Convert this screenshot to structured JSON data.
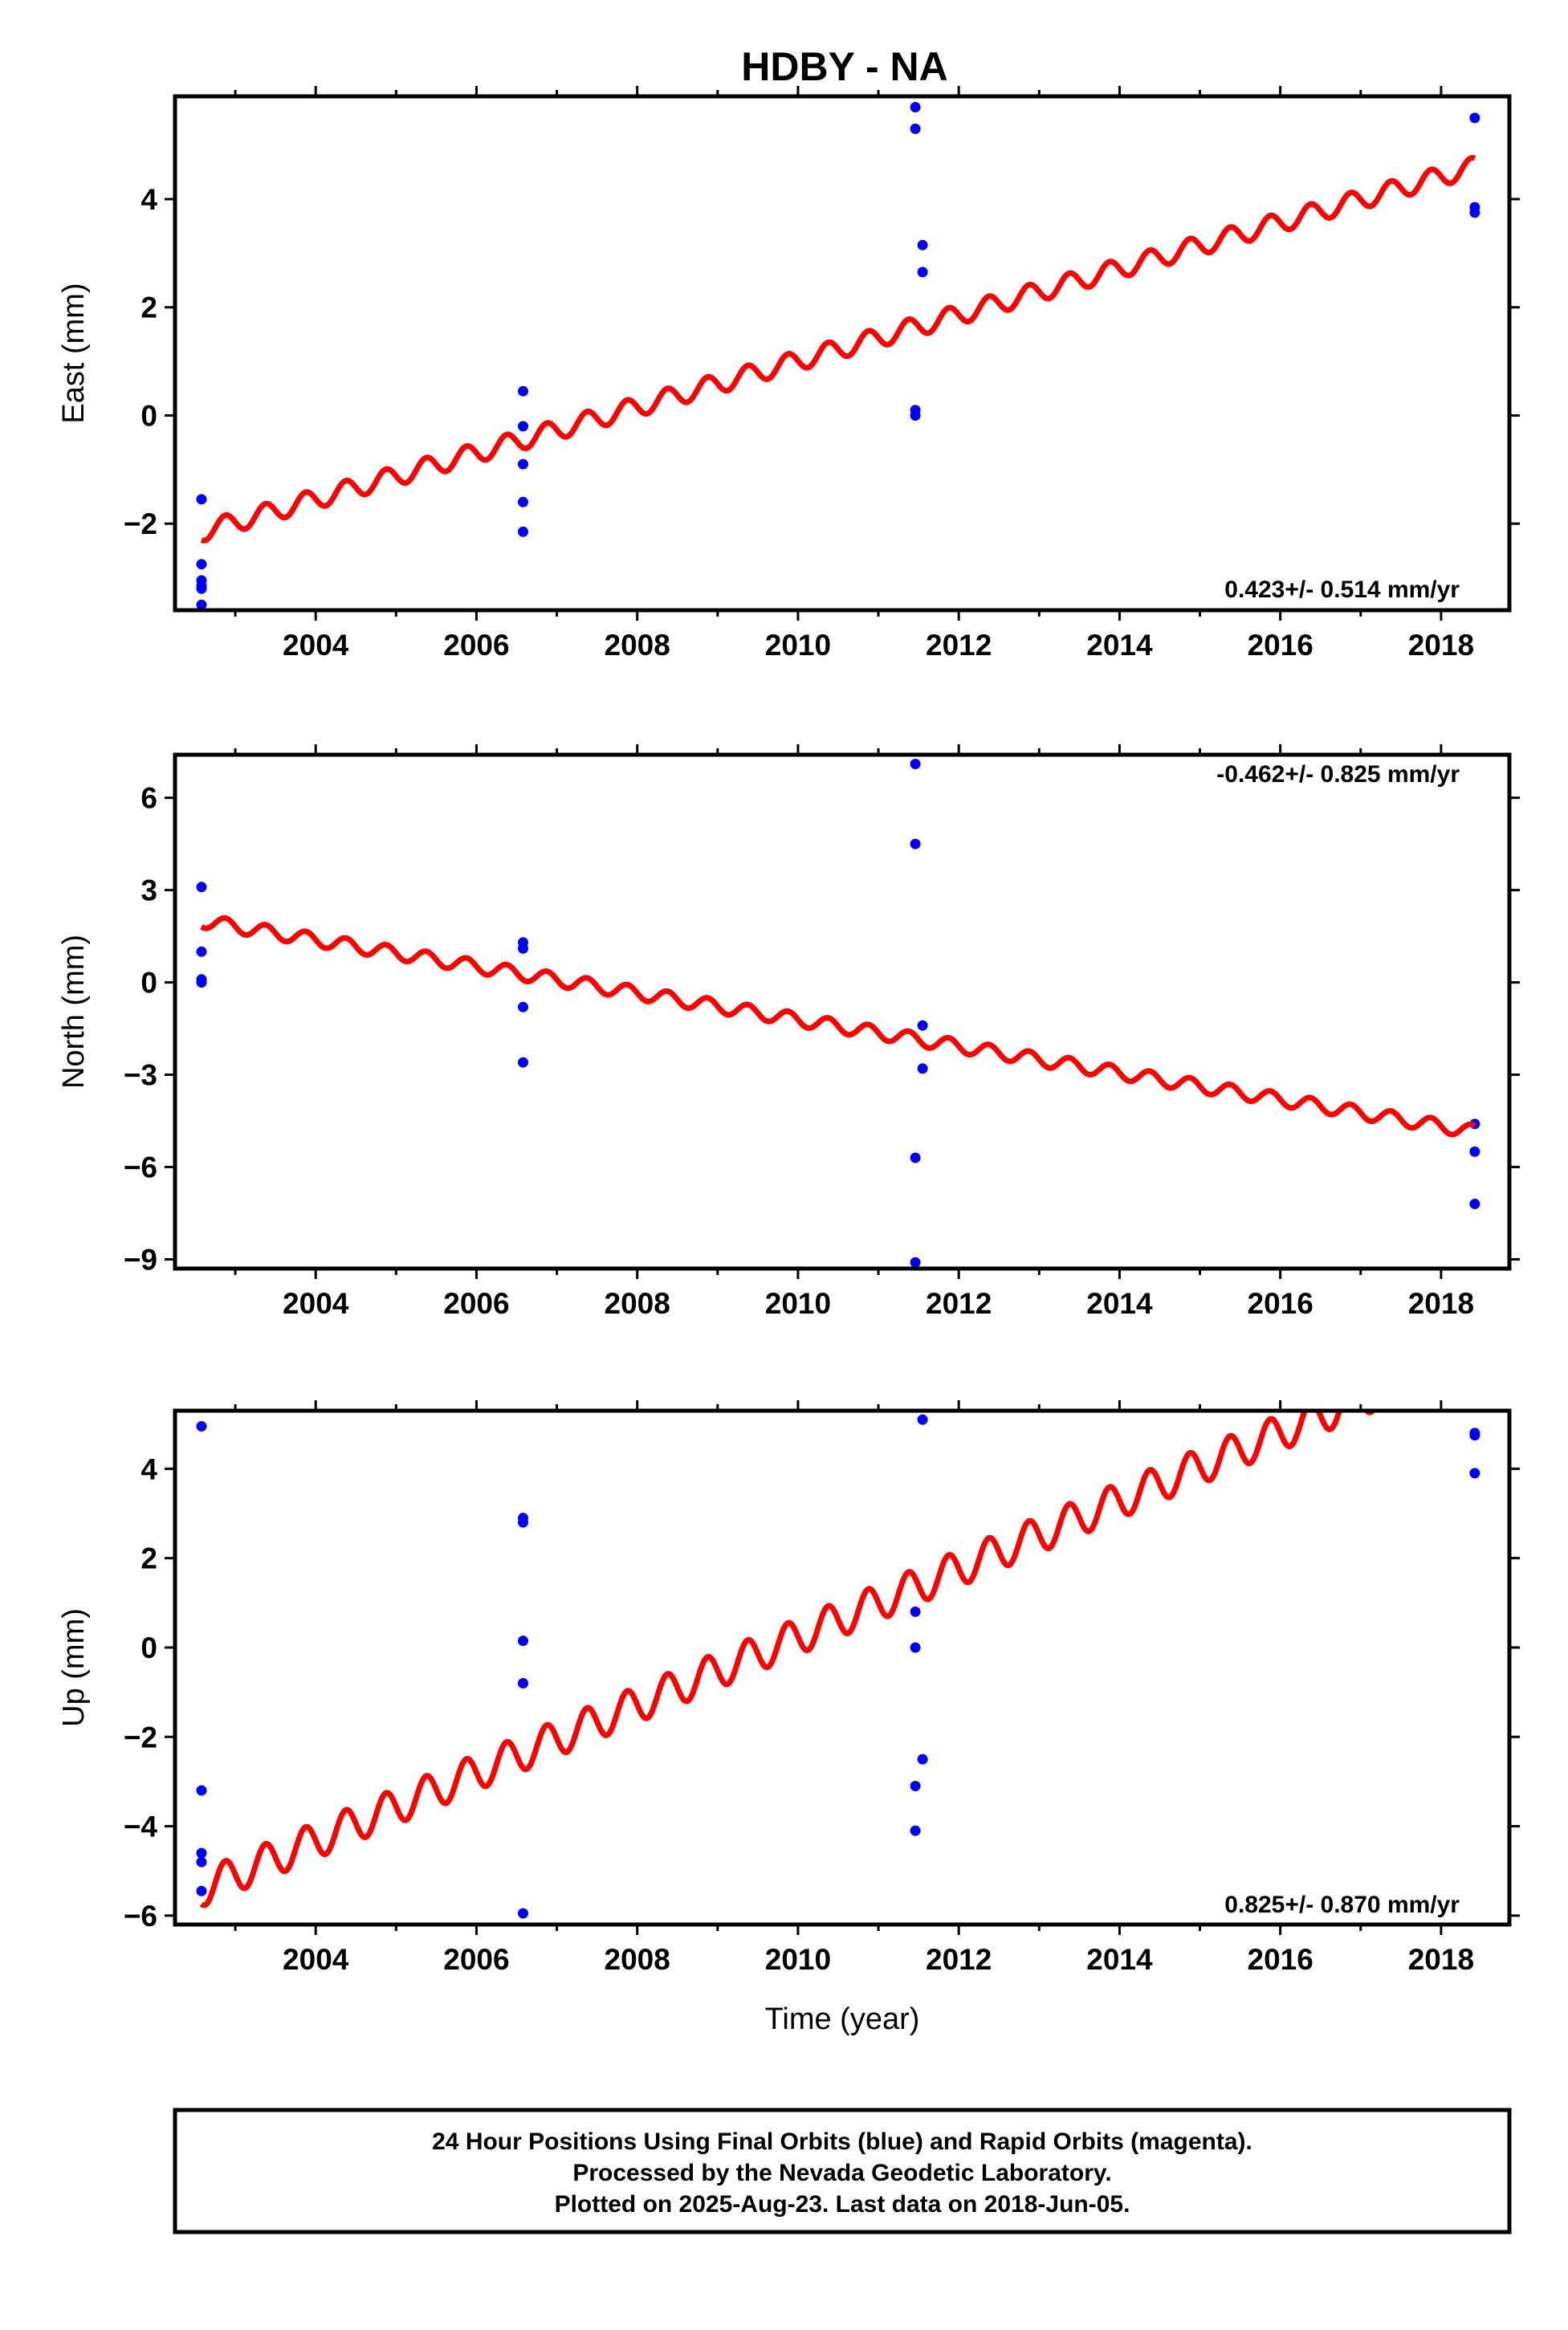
{
  "title": "HDBY - NA",
  "colors": {
    "daily_positions": "#0000ff",
    "model_fit": "#ff0000",
    "frame": "#000000"
  },
  "chart_data": [
    {
      "type": "scatter",
      "panel": "east",
      "ylabel": "East (mm)",
      "xlabel": "",
      "xlim": [
        2002.25,
        2018.85
      ],
      "ylim": [
        -3.6,
        5.9
      ],
      "xticks": [
        2004,
        2006,
        2008,
        2010,
        2012,
        2014,
        2016,
        2018
      ],
      "yticks": [
        -2,
        0,
        2,
        4
      ],
      "ytick_labels": [
        "−2",
        "0",
        "2",
        "4"
      ],
      "rate_label": "0.423+/- 0.514 mm/yr",
      "rate_position": "bottom-right",
      "series": [
        {
          "kind": "points",
          "x": [
            2002.58,
            2002.58,
            2002.58,
            2002.58,
            2002.58,
            2002.58,
            2006.58,
            2006.58,
            2006.58,
            2006.58,
            2006.58,
            2011.46,
            2011.46,
            2011.46,
            2011.46,
            2011.55,
            2011.55,
            2018.42,
            2018.42,
            2018.42
          ],
          "y": [
            -1.55,
            -2.75,
            -3.05,
            -3.2,
            -3.15,
            -3.5,
            0.45,
            -0.2,
            -0.9,
            -1.6,
            -2.15,
            5.7,
            5.3,
            0.1,
            0.0,
            3.15,
            2.65,
            5.5,
            3.85,
            3.75
          ]
        },
        {
          "kind": "model",
          "x_start": 2002.58,
          "x_end": 2018.42,
          "y_start": -2.15,
          "y_end": 4.6,
          "amplitude": 0.18,
          "period": 0.5,
          "phase": 0.75
        }
      ]
    },
    {
      "type": "scatter",
      "panel": "north",
      "ylabel": "North (mm)",
      "xlabel": "",
      "xlim": [
        2002.25,
        2018.85
      ],
      "ylim": [
        -9.3,
        7.4
      ],
      "xticks": [
        2004,
        2006,
        2008,
        2010,
        2012,
        2014,
        2016,
        2018
      ],
      "yticks": [
        -9,
        -6,
        -3,
        0,
        3,
        6
      ],
      "ytick_labels": [
        "−9",
        "−6",
        "−3",
        "0",
        "3",
        "6"
      ],
      "rate_label": "-0.462+/- 0.825 mm/yr",
      "rate_position": "top-right",
      "series": [
        {
          "kind": "points",
          "x": [
            2002.58,
            2002.58,
            2002.58,
            2002.58,
            2006.58,
            2006.58,
            2006.58,
            2006.58,
            2011.46,
            2011.46,
            2011.46,
            2011.46,
            2011.55,
            2011.55,
            2018.42,
            2018.42,
            2018.42
          ],
          "y": [
            3.1,
            1.0,
            0.1,
            0.0,
            1.3,
            1.1,
            -0.8,
            -2.6,
            7.1,
            4.5,
            -5.7,
            -9.1,
            -1.4,
            -2.8,
            -4.6,
            -5.5,
            -7.2
          ]
        },
        {
          "kind": "model",
          "x_start": 2002.58,
          "x_end": 2018.42,
          "y_start": 2.0,
          "y_end": -4.85,
          "amplitude": 0.22,
          "period": 0.5,
          "phase": 0.75
        }
      ]
    },
    {
      "type": "scatter",
      "panel": "up",
      "ylabel": "Up (mm)",
      "xlabel": "Time (year)",
      "xlim": [
        2002.25,
        2018.85
      ],
      "ylim": [
        -6.2,
        5.3
      ],
      "xticks": [
        2004,
        2006,
        2008,
        2010,
        2012,
        2014,
        2016,
        2018
      ],
      "yticks": [
        -6,
        -4,
        -2,
        0,
        2,
        4
      ],
      "ytick_labels": [
        "−6",
        "−4",
        "−2",
        "0",
        "2",
        "4"
      ],
      "rate_label": "0.825+/- 0.870 mm/yr",
      "rate_position": "bottom-right",
      "series": [
        {
          "kind": "points",
          "x": [
            2002.58,
            2002.58,
            2002.58,
            2002.58,
            2002.58,
            2006.58,
            2006.58,
            2006.58,
            2006.58,
            2006.58,
            2011.46,
            2011.46,
            2011.46,
            2011.46,
            2011.55,
            2011.55,
            2018.42,
            2018.42,
            2018.42
          ],
          "y": [
            4.95,
            -3.2,
            -4.6,
            -4.8,
            -5.45,
            2.9,
            2.8,
            0.15,
            -0.8,
            -5.95,
            0.8,
            0.0,
            -3.1,
            -4.1,
            5.1,
            -2.5,
            4.8,
            4.75,
            3.9
          ]
        },
        {
          "kind": "model",
          "x_start": 2002.58,
          "x_end": 2018.42,
          "y_start": -5.4,
          "y_end": 6.65,
          "amplitude": 0.4,
          "period": 0.5,
          "phase": 0.75
        }
      ]
    }
  ],
  "footer": {
    "line1": "24 Hour Positions Using Final Orbits (blue) and Rapid Orbits (magenta).",
    "line2": "Processed by the Nevada Geodetic Laboratory.",
    "line3": "Plotted on 2025-Aug-23. Last data on 2018-Jun-05."
  }
}
